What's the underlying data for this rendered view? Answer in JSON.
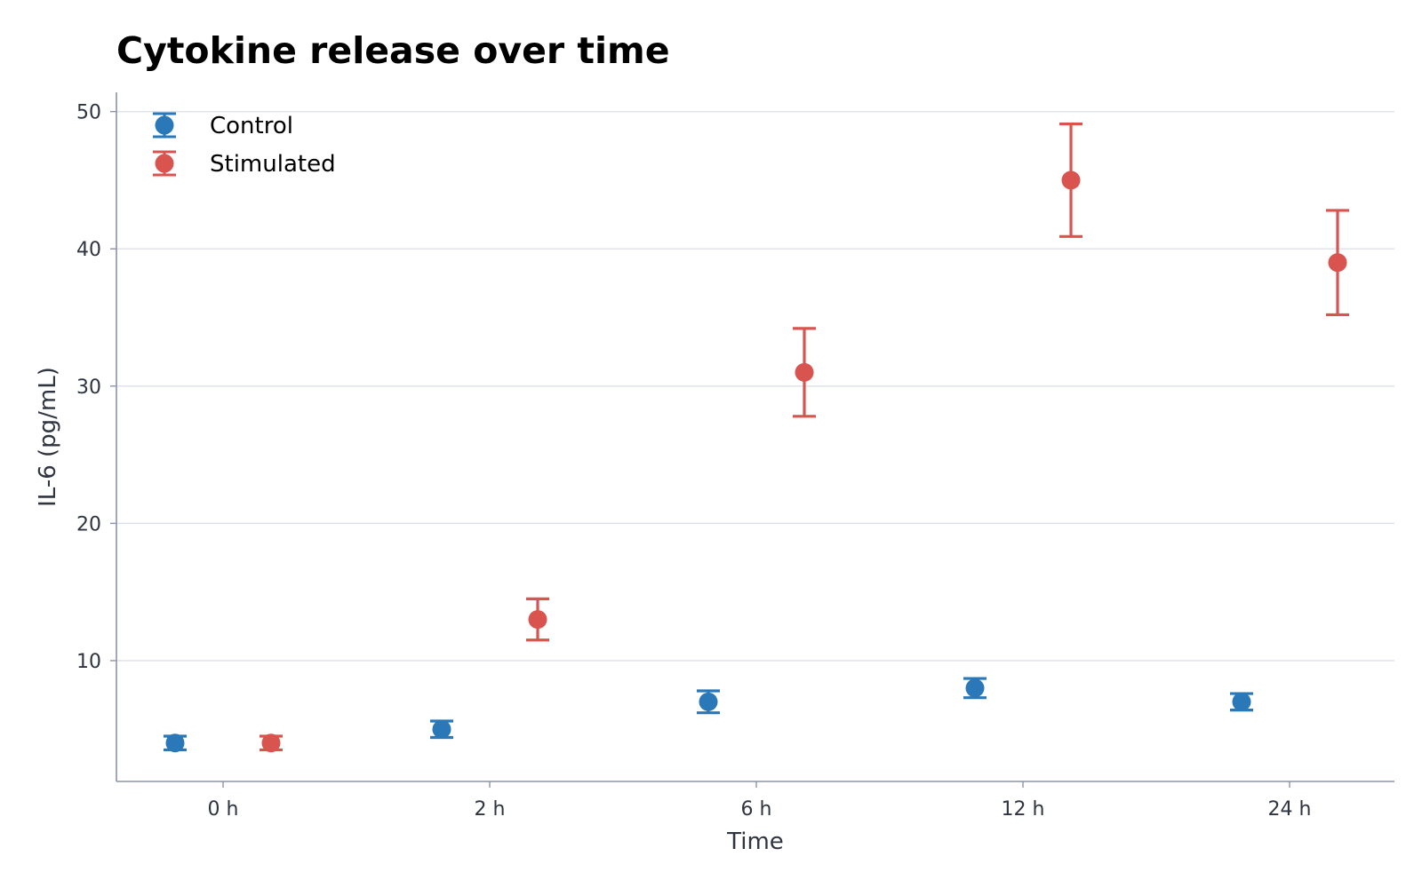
{
  "chart_data": {
    "type": "scatter",
    "title": "Cytokine release over time",
    "xlabel": "Time",
    "ylabel": "IL-6 (pg/mL)",
    "categories": [
      "0 h",
      "2 h",
      "6 h",
      "12 h",
      "24 h"
    ],
    "ylim": [
      1.2,
      51.4
    ],
    "yticks": [
      10,
      20,
      30,
      40,
      50
    ],
    "grid": "horizontal",
    "legend_position": "top-left",
    "series": [
      {
        "name": "Control",
        "color": "#2a78b8",
        "values": [
          4.0,
          5.0,
          7.0,
          8.0,
          7.0
        ],
        "errors": [
          0.5,
          0.6,
          0.8,
          0.7,
          0.6
        ]
      },
      {
        "name": "Stimulated",
        "color": "#d9534f",
        "values": [
          4.0,
          13.0,
          31.0,
          45.0,
          39.0
        ],
        "errors": [
          0.5,
          1.5,
          3.2,
          4.1,
          3.8
        ]
      }
    ]
  }
}
